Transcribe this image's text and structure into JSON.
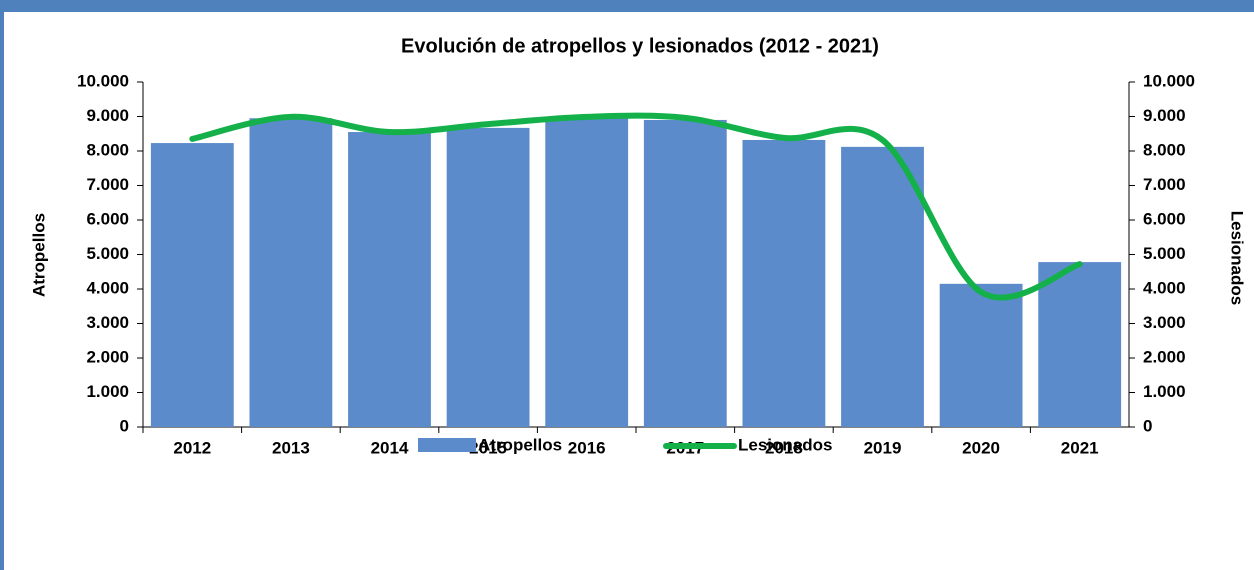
{
  "chart_data": {
    "type": "bar_line",
    "title": "Evolución de atropellos y lesionados (2012 - 2021)",
    "y_label": "Atropellos",
    "y2_label": "Lesionados",
    "categories": [
      "2012",
      "2013",
      "2014",
      "2015",
      "2016",
      "2017",
      "2018",
      "2019",
      "2020",
      "2021"
    ],
    "series": [
      {
        "name": "Atropellos",
        "type": "bar",
        "color": "#5b8bcb",
        "values": [
          8230,
          8950,
          8550,
          8670,
          8990,
          8900,
          8320,
          8120,
          4150,
          4780
        ]
      },
      {
        "name": "Lesionados",
        "type": "line",
        "axis": "y2",
        "color": "#14b14b",
        "values": [
          8350,
          8990,
          8550,
          8780,
          8990,
          8960,
          8380,
          8320,
          3910,
          4720
        ]
      }
    ],
    "ylim": [
      0,
      10000
    ],
    "yticks": [
      0,
      {
        "value": 1000,
        "label": "1.000"
      },
      {
        "value": 2000,
        "label": "2.000"
      },
      {
        "value": 3000,
        "label": "3.000"
      },
      {
        "value": 4000,
        "label": "4.000"
      },
      {
        "value": 5000,
        "label": "5.000"
      },
      {
        "value": 6000,
        "label": "6.000"
      },
      {
        "value": 7000,
        "label": "7.000"
      },
      {
        "value": 8000,
        "label": "8.000"
      },
      {
        "value": 9000,
        "label": "9.000"
      },
      {
        "value": 10000,
        "label": "10.000"
      }
    ],
    "y2lim": [
      0,
      10000
    ],
    "y2ticks": [
      0,
      {
        "value": 1000,
        "label": "1.000"
      },
      {
        "value": 2000,
        "label": "2.000"
      },
      {
        "value": 3000,
        "label": "3.000"
      },
      {
        "value": 4000,
        "label": "4.000"
      },
      {
        "value": 5000,
        "label": "5.000"
      },
      {
        "value": 6000,
        "label": "6.000"
      },
      {
        "value": 7000,
        "label": "7.000"
      },
      {
        "value": 8000,
        "label": "8.000"
      },
      {
        "value": 9000,
        "label": "9.000"
      },
      {
        "value": 10000,
        "label": "10.000"
      }
    ],
    "legend": "bottom"
  }
}
